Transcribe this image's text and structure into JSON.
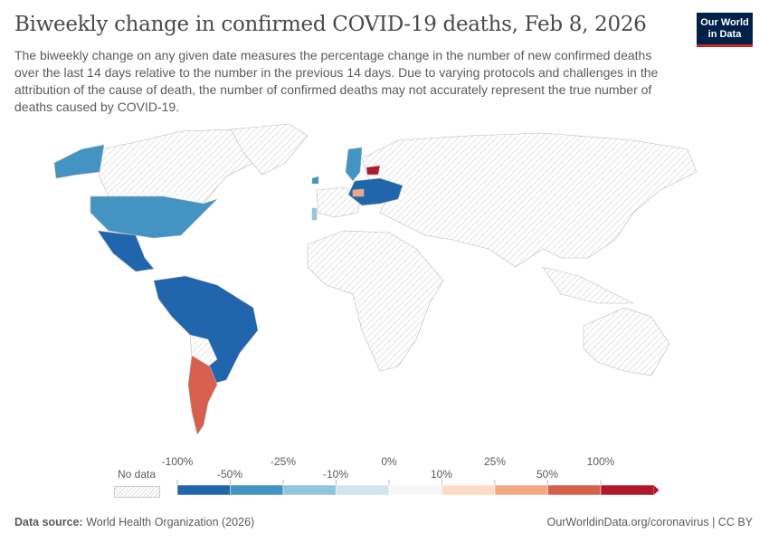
{
  "header": {
    "title": "Biweekly change in confirmed COVID-19 deaths, Feb 8, 2026",
    "subtitle": "The biweekly change on any given date measures the percentage change in the number of new confirmed deaths over the last 14 days relative to the number in the previous 14 days. Due to varying protocols and challenges in the attribution of the cause of death, the number of confirmed deaths may not accurately represent the true number of deaths caused by COVID-19.",
    "logo_text": "Our World in Data"
  },
  "legend": {
    "no_data_label": "No data",
    "top_labels": [
      "-100%",
      "-25%",
      "0%",
      "25%",
      "100%"
    ],
    "bottom_labels": [
      "-50%",
      "-10%",
      "10%",
      "50%"
    ],
    "bins": [
      "#2166ac",
      "#4393c3",
      "#92c5de",
      "#d1e5f0",
      "#f7f7f7",
      "#fddbc7",
      "#f4a582",
      "#d6604d",
      "#b2182b"
    ]
  },
  "map_colors": {
    "no_data": "#e0e0e0",
    "border": "#bbbbbb"
  },
  "footer": {
    "source_label": "Data source:",
    "source": "World Health Organization (2026)",
    "url": "OurWorldinData.org/coronavirus | CC BY"
  }
}
